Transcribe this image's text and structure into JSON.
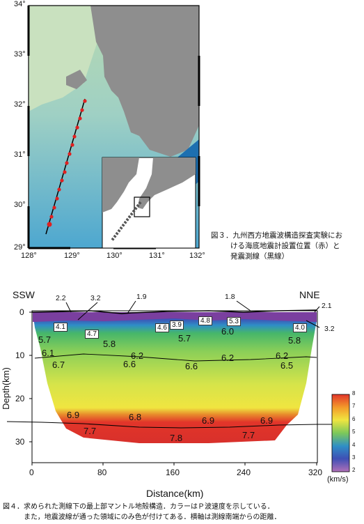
{
  "figure3": {
    "lat_ticks": [
      "34°",
      "33°",
      "32°",
      "31°",
      "30°",
      "29°"
    ],
    "lon_ticks": [
      "128°",
      "129°",
      "130°",
      "131°",
      "132°"
    ],
    "caption_lines": [
      "図３．九州西方地震波構造探査実験にお",
      "ける海底地震計設置位置（赤）と",
      "発震測線（黒線）"
    ]
  },
  "figure4": {
    "left_dir": "SSW",
    "right_dir": "NNE",
    "y_axis_label": "Depth(km)",
    "x_axis_label": "Distance(km)",
    "y_ticks": [
      "0",
      "10",
      "20",
      "30"
    ],
    "x_ticks": [
      "0",
      "80",
      "160",
      "240",
      "320"
    ],
    "colorbar_ticks": [
      "8",
      "7",
      "6",
      "5",
      "4",
      "3",
      "2"
    ],
    "colorbar_unit": "(km/s)",
    "velocity_labels": {
      "v22": "2.2",
      "v32a": "3.2",
      "v19": "1.9",
      "v18": "1.8",
      "v21": "2.1",
      "v32b": "3.2",
      "v41a": "4.1",
      "v47": "4.7",
      "v46": "4.6",
      "v39": "3.9",
      "v48": "4.8",
      "v53": "5.3",
      "v40": "4.0",
      "v57a": "5.7",
      "v58a": "5.8",
      "v57b": "5.7",
      "v60": "6.0",
      "v58b": "5.8",
      "v61": "6.1",
      "v62a": "6.2",
      "v62b": "6.2",
      "v62c": "6.2",
      "v67": "6.7",
      "v66a": "6.6",
      "v66b": "6.6",
      "v65": "6.5",
      "v69a": "6.9",
      "v68": "6.8",
      "v69b": "6.9",
      "v69c": "6.9",
      "v77a": "7.7",
      "v78": "7.8",
      "v77b": "7.7"
    },
    "caption_lines": [
      "図４．求められた測線下の最上部マントル地殻構造．カラーはＰ波速度を示している．",
      "また，地震波線が通った領域にのみ色が付けてある．横軸は測線南端からの距離．"
    ]
  }
}
